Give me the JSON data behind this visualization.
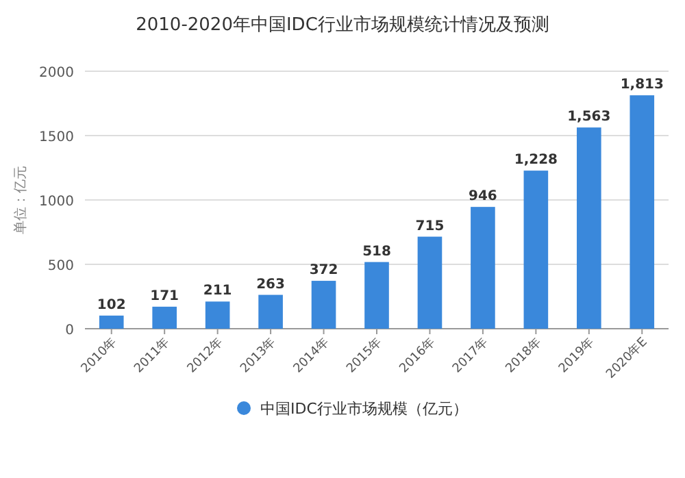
{
  "chart_data": {
    "type": "bar",
    "title": "2010-2020年中国IDC行业市场规模统计情况及预测",
    "ylabel": "单位：亿元",
    "categories": [
      "2010年",
      "2011年",
      "2012年",
      "2013年",
      "2014年",
      "2015年",
      "2016年",
      "2017年",
      "2018年",
      "2019年",
      "2020年E"
    ],
    "series": [
      {
        "name": "中国IDC行业市场规模（亿元）",
        "color": "#3a88db",
        "values": [
          102,
          171,
          211,
          263,
          372,
          518,
          715,
          946,
          1228,
          1563,
          1813
        ],
        "value_labels": [
          "102",
          "171",
          "211",
          "263",
          "372",
          "518",
          "715",
          "946",
          "1,228",
          "1,563",
          "1,813"
        ]
      }
    ],
    "ylim": [
      0,
      2000
    ],
    "yticks": [
      0,
      500,
      1000,
      1500,
      2000
    ],
    "grid": "y",
    "legend": "bottom"
  }
}
